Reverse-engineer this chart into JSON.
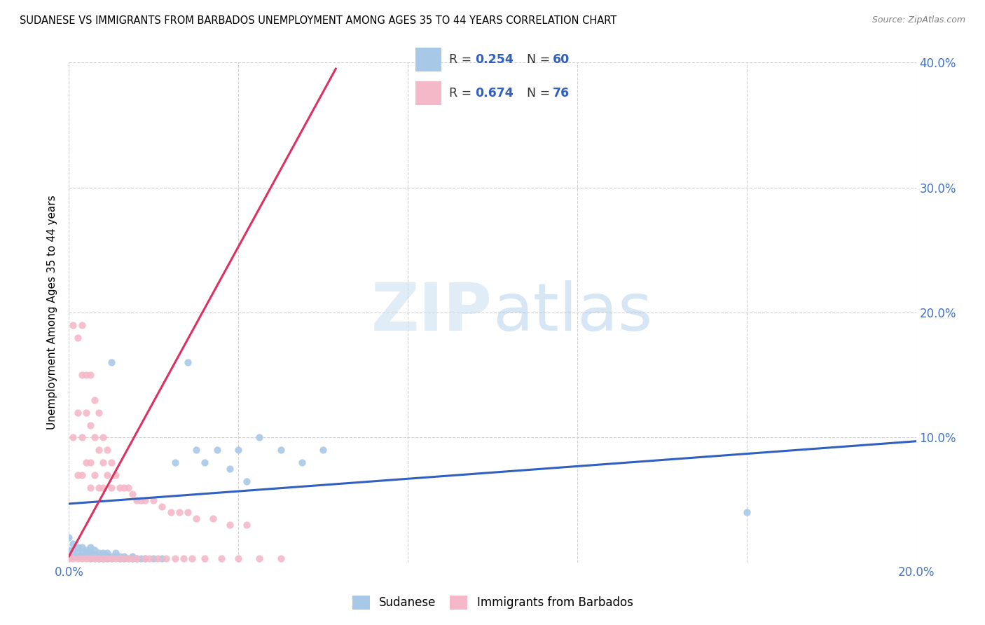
{
  "title": "SUDANESE VS IMMIGRANTS FROM BARBADOS UNEMPLOYMENT AMONG AGES 35 TO 44 YEARS CORRELATION CHART",
  "source": "Source: ZipAtlas.com",
  "ylabel_label": "Unemployment Among Ages 35 to 44 years",
  "xlim": [
    0.0,
    0.2
  ],
  "ylim": [
    0.0,
    0.4
  ],
  "blue_color": "#a8c8e8",
  "pink_color": "#f4b8c8",
  "blue_line_color": "#3060c0",
  "pink_line_color": "#e03060",
  "watermark_zip": "ZIP",
  "watermark_atlas": "atlas",
  "series1_label": "Sudanese",
  "series2_label": "Immigrants from Barbados",
  "sudanese_x": [
    0.0,
    0.0,
    0.001,
    0.001,
    0.001,
    0.002,
    0.002,
    0.002,
    0.003,
    0.003,
    0.003,
    0.004,
    0.004,
    0.004,
    0.005,
    0.005,
    0.005,
    0.005,
    0.006,
    0.006,
    0.006,
    0.007,
    0.007,
    0.007,
    0.008,
    0.008,
    0.008,
    0.009,
    0.009,
    0.009,
    0.01,
    0.01,
    0.01,
    0.011,
    0.011,
    0.012,
    0.012,
    0.013,
    0.013,
    0.014,
    0.015,
    0.015,
    0.016,
    0.017,
    0.018,
    0.02,
    0.022,
    0.025,
    0.028,
    0.03,
    0.032,
    0.035,
    0.038,
    0.04,
    0.042,
    0.045,
    0.05,
    0.055,
    0.06,
    0.16
  ],
  "sudanese_y": [
    0.02,
    0.01,
    0.005,
    0.01,
    0.015,
    0.005,
    0.008,
    0.012,
    0.005,
    0.008,
    0.012,
    0.005,
    0.008,
    0.01,
    0.003,
    0.006,
    0.008,
    0.012,
    0.003,
    0.006,
    0.01,
    0.003,
    0.005,
    0.008,
    0.003,
    0.005,
    0.008,
    0.003,
    0.005,
    0.008,
    0.003,
    0.005,
    0.16,
    0.005,
    0.008,
    0.003,
    0.005,
    0.003,
    0.005,
    0.003,
    0.003,
    0.005,
    0.003,
    0.003,
    0.003,
    0.003,
    0.003,
    0.08,
    0.16,
    0.09,
    0.08,
    0.09,
    0.075,
    0.09,
    0.065,
    0.1,
    0.09,
    0.08,
    0.09,
    0.04
  ],
  "barbados_x": [
    0.0,
    0.0,
    0.001,
    0.001,
    0.001,
    0.002,
    0.002,
    0.002,
    0.002,
    0.003,
    0.003,
    0.003,
    0.003,
    0.003,
    0.004,
    0.004,
    0.004,
    0.004,
    0.005,
    0.005,
    0.005,
    0.005,
    0.005,
    0.006,
    0.006,
    0.006,
    0.006,
    0.007,
    0.007,
    0.007,
    0.007,
    0.008,
    0.008,
    0.008,
    0.008,
    0.009,
    0.009,
    0.009,
    0.01,
    0.01,
    0.01,
    0.011,
    0.011,
    0.012,
    0.012,
    0.013,
    0.013,
    0.014,
    0.014,
    0.015,
    0.015,
    0.016,
    0.016,
    0.017,
    0.018,
    0.018,
    0.019,
    0.02,
    0.021,
    0.022,
    0.023,
    0.024,
    0.025,
    0.026,
    0.027,
    0.028,
    0.029,
    0.03,
    0.032,
    0.034,
    0.036,
    0.038,
    0.04,
    0.042,
    0.045,
    0.05
  ],
  "barbados_y": [
    0.005,
    0.003,
    0.19,
    0.1,
    0.003,
    0.18,
    0.12,
    0.07,
    0.003,
    0.19,
    0.15,
    0.1,
    0.07,
    0.003,
    0.15,
    0.12,
    0.08,
    0.003,
    0.15,
    0.11,
    0.08,
    0.06,
    0.003,
    0.13,
    0.1,
    0.07,
    0.003,
    0.12,
    0.09,
    0.06,
    0.003,
    0.1,
    0.08,
    0.06,
    0.003,
    0.09,
    0.07,
    0.003,
    0.08,
    0.06,
    0.003,
    0.07,
    0.003,
    0.06,
    0.003,
    0.06,
    0.003,
    0.06,
    0.003,
    0.055,
    0.003,
    0.05,
    0.003,
    0.05,
    0.05,
    0.003,
    0.003,
    0.05,
    0.003,
    0.045,
    0.003,
    0.04,
    0.003,
    0.04,
    0.003,
    0.04,
    0.003,
    0.035,
    0.003,
    0.035,
    0.003,
    0.03,
    0.003,
    0.03,
    0.003,
    0.003
  ],
  "blue_trend_x": [
    0.0,
    0.2
  ],
  "blue_trend_y": [
    0.047,
    0.097
  ],
  "pink_trend_x": [
    0.0,
    0.063
  ],
  "pink_trend_y": [
    0.005,
    0.395
  ]
}
